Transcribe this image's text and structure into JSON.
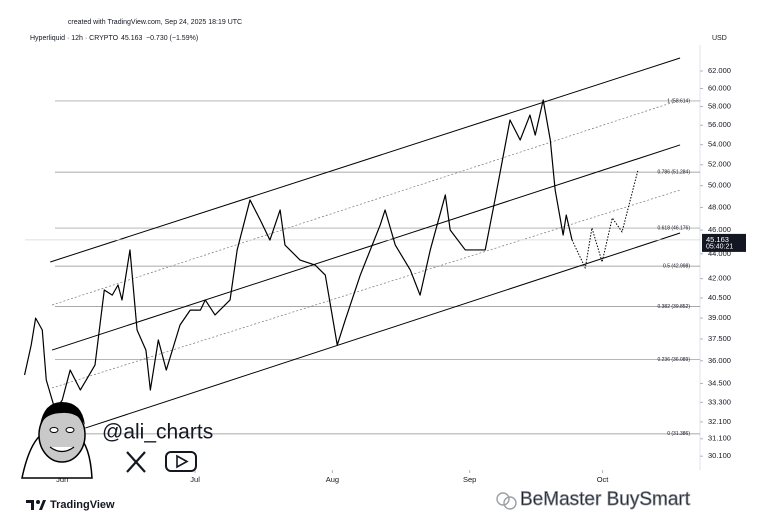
{
  "header": {
    "created": "created with TradingView.com, Sep 24, 2025 18:19 UTC",
    "symbol": "Hyperliquid · 12h · CRYPTO",
    "price": "45.163",
    "change": "−0.730 (−1.59%)",
    "currency": "USD"
  },
  "chart_data": {
    "type": "line",
    "log_scale": true,
    "xlim": [
      143.6,
      296
    ],
    "xticks": [
      {
        "value": 152,
        "label": "Jun"
      },
      {
        "value": 182,
        "label": "Jul"
      },
      {
        "value": 213,
        "label": "Aug"
      },
      {
        "value": 244,
        "label": "Sep"
      },
      {
        "value": 274,
        "label": "Oct"
      }
    ],
    "ylim": [
      29.33,
      65.1
    ],
    "yticks": [
      {
        "value": 62,
        "label": "62.000"
      },
      {
        "value": 60,
        "label": "60.000"
      },
      {
        "value": 58,
        "label": "58.000"
      },
      {
        "value": 56,
        "label": "56.000"
      },
      {
        "value": 54,
        "label": "54.000"
      },
      {
        "value": 52,
        "label": "52.000"
      },
      {
        "value": 50,
        "label": "50.000"
      },
      {
        "value": 48,
        "label": "48.000"
      },
      {
        "value": 46,
        "label": "46.000"
      },
      {
        "value": 44,
        "label": "44.000"
      },
      {
        "value": 42,
        "label": "42.000"
      },
      {
        "value": 40.5,
        "label": "40.500"
      },
      {
        "value": 39,
        "label": "39.000"
      },
      {
        "value": 37.5,
        "label": "37.500"
      },
      {
        "value": 36,
        "label": "36.000"
      },
      {
        "value": 34.5,
        "label": "34.500"
      },
      {
        "value": 33.3,
        "label": "33.300"
      },
      {
        "value": 32.1,
        "label": "32.100"
      },
      {
        "value": 31.1,
        "label": "31.100"
      },
      {
        "value": 30.1,
        "label": "30.100"
      }
    ],
    "series": [
      {
        "color": "#000000",
        "style": "solid",
        "x": [
          143.5,
          145,
          146,
          147.5,
          148.4,
          150.4,
          152,
          153.8,
          156.1,
          159.4,
          161.5,
          163.3,
          164.6,
          165.5,
          167.3,
          168.9,
          170.9,
          171.9,
          173.7,
          175.5,
          178.6,
          180.9,
          183.2,
          184.3,
          186.5,
          189.9,
          191.5,
          194.4,
          196.7,
          198.9,
          201.2,
          202.3,
          205.7,
          209.1,
          211.4,
          214.1,
          215.9,
          219.3,
          223.8,
          224.9,
          227.2,
          230.6,
          232.8,
          235.1,
          238.5,
          239.6,
          243,
          247.5,
          249.7,
          253.1,
          255.4,
          257.6,
          258.8,
          260.6,
          262.2,
          263.3,
          265.1,
          265.8,
          267.1
        ],
        "values": [
          35.05,
          37.08,
          39.0,
          38.14,
          34.73,
          32.82,
          33.44,
          35.38,
          34.08,
          35.71,
          41.11,
          40.72,
          41.5,
          40.35,
          44.32,
          38.14,
          36.73,
          34.08,
          37.43,
          35.38,
          38.5,
          39.59,
          39.59,
          40.35,
          39.23,
          40.35,
          44.32,
          48.68,
          46.89,
          45.15,
          47.77,
          44.73,
          43.49,
          43.08,
          42.28,
          37.08,
          38.86,
          42.28,
          46.45,
          47.77,
          44.73,
          42.68,
          40.72,
          44.32,
          49.14,
          46.01,
          44.32,
          44.32,
          48.68,
          56.56,
          54.47,
          57.08,
          54.98,
          58.72,
          54.47,
          49.59,
          45.58,
          47.32,
          45.163
        ]
      },
      {
        "color": "#000000",
        "style": "dotted",
        "x": [
          267.1,
          270.1,
          271.6,
          273.9,
          276.2,
          278.4,
          282
        ],
        "values": [
          45.163,
          42.84,
          46.18,
          43.33,
          47.06,
          45.84,
          51.49
        ]
      }
    ],
    "trendlines": [
      {
        "style": "solid",
        "x": [
          149.3,
          291.5
        ],
        "y": [
          43.33,
          63.53
        ]
      },
      {
        "style": "dotted",
        "x": [
          149.7,
          291.5
        ],
        "y": [
          39.97,
          58.72
        ]
      },
      {
        "style": "solid",
        "x": [
          149.7,
          291.5
        ],
        "y": [
          36.73,
          53.97
        ]
      },
      {
        "style": "dotted",
        "x": [
          149.7,
          291.5
        ],
        "y": [
          34.21,
          49.59
        ]
      },
      {
        "style": "solid",
        "x": [
          157.2,
          291.5
        ],
        "y": [
          31.73,
          45.75
        ]
      }
    ],
    "fib_levels": [
      {
        "value": 58.614,
        "label": "1 (58.614)"
      },
      {
        "value": 51.284,
        "label": "0.786 (51.284)"
      },
      {
        "value": 46.176,
        "label": "0.618 (46.176)"
      },
      {
        "value": 42.998,
        "label": "0.5 (42.998)"
      },
      {
        "value": 39.852,
        "label": "0.382 (39.852)"
      },
      {
        "value": 36.089,
        "label": "0.236 (36.089)"
      },
      {
        "value": 31.386,
        "label": "0 (31.386)"
      }
    ],
    "last_price": {
      "value": 45.163,
      "label": "45.163"
    },
    "countdown": "05:40:21"
  },
  "branding": {
    "author": "@ali_charts",
    "logo": "TradingView",
    "watermark": "BeMaster BuySmart"
  }
}
